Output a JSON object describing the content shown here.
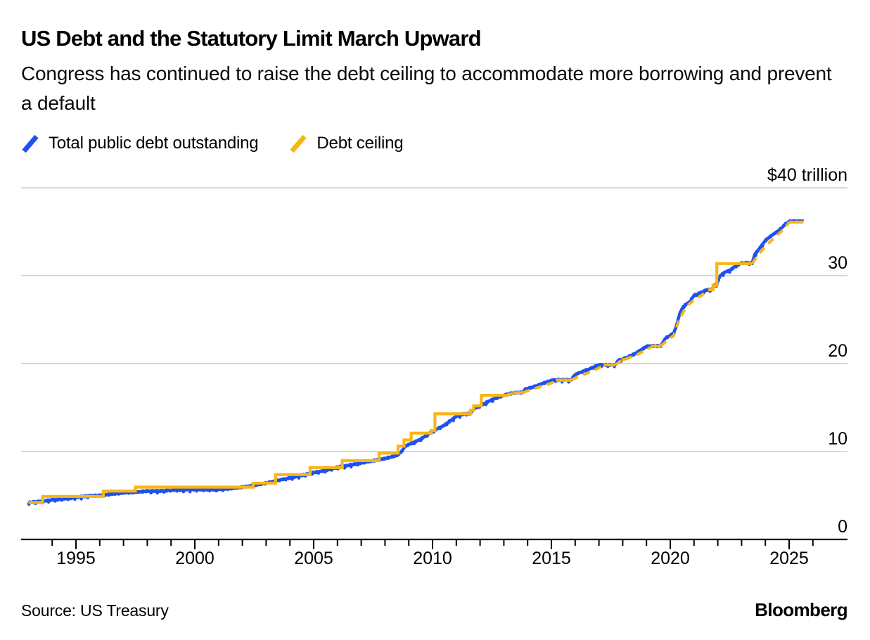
{
  "header": {
    "title": "US Debt and the Statutory Limit March Upward",
    "subtitle": "Congress has continued to raise the debt ceiling to accommodate more borrowing and prevent a default"
  },
  "footer": {
    "source": "Source: US Treasury",
    "brand": "Bloomberg"
  },
  "colors": {
    "debt_blue": "#1e51f0",
    "ceiling_yellow": "#f8b614",
    "gridline": "#cccccc",
    "axis": "#000000",
    "background": "#ffffff"
  },
  "chart_data": {
    "type": "line",
    "title": "US Debt and the Statutory Limit March Upward",
    "xlabel": "",
    "ylabel": "trillions of US dollars",
    "xlim": [
      1992.7,
      2027.4
    ],
    "ylim": [
      0,
      40
    ],
    "grid": true,
    "legend_position": "top-left",
    "yticks": [
      {
        "v": 0,
        "label": "0"
      },
      {
        "v": 10,
        "label": "10"
      },
      {
        "v": 20,
        "label": "20"
      },
      {
        "v": 30,
        "label": "30"
      },
      {
        "v": 40,
        "label": "$40 trillion"
      }
    ],
    "xticks_major": [
      1995,
      2000,
      2005,
      2010,
      2015,
      2020,
      2025
    ],
    "xticks_minor_range": [
      1994,
      2026
    ],
    "legend": [
      {
        "label": "Total public debt outstanding",
        "color": "#1e51f0"
      },
      {
        "label": "Debt ceiling",
        "color": "#f8b614"
      }
    ],
    "series": [
      {
        "name": "Total public debt outstanding",
        "style": "solid-noisy",
        "color": "#1e51f0",
        "visual_noise_trillions": 0.09,
        "points": [
          [
            1993.0,
            4.2
          ],
          [
            1993.3,
            4.27
          ],
          [
            1993.6,
            4.35
          ],
          [
            1994.0,
            4.5
          ],
          [
            1994.5,
            4.6
          ],
          [
            1995.0,
            4.8
          ],
          [
            1995.5,
            4.95
          ],
          [
            1996.0,
            5.0
          ],
          [
            1996.5,
            5.15
          ],
          [
            1997.0,
            5.3
          ],
          [
            1997.5,
            5.37
          ],
          [
            1998.0,
            5.5
          ],
          [
            1998.5,
            5.5
          ],
          [
            1999.0,
            5.6
          ],
          [
            1999.5,
            5.65
          ],
          [
            2000.0,
            5.7
          ],
          [
            2000.5,
            5.65
          ],
          [
            2001.0,
            5.7
          ],
          [
            2001.5,
            5.78
          ],
          [
            2002.0,
            5.95
          ],
          [
            2002.5,
            6.15
          ],
          [
            2003.0,
            6.4
          ],
          [
            2003.5,
            6.73
          ],
          [
            2004.0,
            7.0
          ],
          [
            2004.5,
            7.3
          ],
          [
            2005.0,
            7.6
          ],
          [
            2005.5,
            7.85
          ],
          [
            2006.0,
            8.2
          ],
          [
            2006.5,
            8.45
          ],
          [
            2007.0,
            8.7
          ],
          [
            2007.5,
            8.95
          ],
          [
            2008.0,
            9.2
          ],
          [
            2008.5,
            9.55
          ],
          [
            2008.7,
            10.0
          ],
          [
            2008.85,
            10.6
          ],
          [
            2009.0,
            10.8
          ],
          [
            2009.5,
            11.4
          ],
          [
            2010.0,
            12.3
          ],
          [
            2010.5,
            13.0
          ],
          [
            2011.0,
            14.0
          ],
          [
            2011.35,
            14.3
          ],
          [
            2011.6,
            14.3
          ],
          [
            2011.7,
            14.8
          ],
          [
            2012.0,
            15.2
          ],
          [
            2012.5,
            15.9
          ],
          [
            2013.0,
            16.4
          ],
          [
            2013.45,
            16.7
          ],
          [
            2013.8,
            16.7
          ],
          [
            2013.9,
            17.1
          ],
          [
            2014.2,
            17.3
          ],
          [
            2014.6,
            17.7
          ],
          [
            2015.0,
            18.1
          ],
          [
            2015.2,
            18.15
          ],
          [
            2015.85,
            18.15
          ],
          [
            2015.95,
            18.65
          ],
          [
            2016.2,
            19.0
          ],
          [
            2016.6,
            19.4
          ],
          [
            2017.0,
            19.85
          ],
          [
            2017.7,
            19.85
          ],
          [
            2017.8,
            20.35
          ],
          [
            2018.0,
            20.5
          ],
          [
            2018.5,
            21.1
          ],
          [
            2019.0,
            21.95
          ],
          [
            2019.15,
            22.0
          ],
          [
            2019.6,
            22.0
          ],
          [
            2019.8,
            22.9
          ],
          [
            2020.0,
            23.2
          ],
          [
            2020.15,
            23.5
          ],
          [
            2020.25,
            24.2
          ],
          [
            2020.4,
            25.7
          ],
          [
            2020.55,
            26.5
          ],
          [
            2020.8,
            27.0
          ],
          [
            2021.0,
            27.75
          ],
          [
            2021.3,
            28.1
          ],
          [
            2021.55,
            28.4
          ],
          [
            2021.75,
            28.4
          ],
          [
            2021.85,
            28.9
          ],
          [
            2021.95,
            29.0
          ],
          [
            2022.1,
            30.0
          ],
          [
            2022.3,
            30.4
          ],
          [
            2022.5,
            30.6
          ],
          [
            2022.75,
            31.1
          ],
          [
            2023.0,
            31.45
          ],
          [
            2023.45,
            31.45
          ],
          [
            2023.55,
            32.4
          ],
          [
            2023.75,
            33.1
          ],
          [
            2024.0,
            34.0
          ],
          [
            2024.3,
            34.65
          ],
          [
            2024.6,
            35.2
          ],
          [
            2024.85,
            35.9
          ],
          [
            2025.0,
            36.15
          ],
          [
            2025.1,
            36.2
          ],
          [
            2025.6,
            36.2
          ]
        ]
      },
      {
        "name": "Debt ceiling",
        "style": "steps-with-dashed-suspensions",
        "color": "#f8b614",
        "solid_steps": [
          {
            "from": 1993.0,
            "to": 1993.6,
            "level": 4.2
          },
          {
            "from": 1993.6,
            "to": 1996.15,
            "level": 4.9
          },
          {
            "from": 1996.15,
            "to": 1997.5,
            "level": 5.5
          },
          {
            "from": 1997.5,
            "to": 2002.45,
            "level": 5.95
          },
          {
            "from": 2002.45,
            "to": 2003.4,
            "level": 6.4
          },
          {
            "from": 2003.4,
            "to": 2004.85,
            "level": 7.38
          },
          {
            "from": 2004.85,
            "to": 2006.2,
            "level": 8.18
          },
          {
            "from": 2006.2,
            "to": 2007.75,
            "level": 8.97
          },
          {
            "from": 2007.75,
            "to": 2008.55,
            "level": 9.82
          },
          {
            "from": 2008.55,
            "to": 2008.8,
            "level": 10.61
          },
          {
            "from": 2008.8,
            "to": 2009.1,
            "level": 11.32
          },
          {
            "from": 2009.1,
            "to": 2009.95,
            "level": 12.1
          },
          {
            "from": 2009.95,
            "to": 2010.1,
            "level": 12.39
          },
          {
            "from": 2010.1,
            "to": 2011.6,
            "level": 14.29
          },
          {
            "from": 2011.6,
            "to": 2011.73,
            "level": 14.69
          },
          {
            "from": 2011.73,
            "to": 2012.05,
            "level": 15.19
          },
          {
            "from": 2012.05,
            "to": 2013.1,
            "level": 16.39
          },
          {
            "from": 2013.4,
            "to": 2013.8,
            "level": 16.7
          },
          {
            "from": 2015.2,
            "to": 2015.85,
            "level": 18.11
          },
          {
            "from": 2017.2,
            "to": 2017.7,
            "level": 19.85
          },
          {
            "from": 2017.95,
            "to": 2018.1,
            "level": 20.46
          },
          {
            "from": 2019.2,
            "to": 2019.6,
            "level": 21.99
          },
          {
            "from": 2021.6,
            "to": 2021.8,
            "level": 28.4
          },
          {
            "from": 2021.8,
            "to": 2021.96,
            "level": 28.9
          },
          {
            "from": 2021.96,
            "to": 2023.45,
            "level": 31.38
          },
          {
            "from": 2025.0,
            "to": 2025.6,
            "level": 36.1
          }
        ],
        "dashed_suspension_segments": [
          [
            [
              2013.1,
              16.4
            ],
            [
              2013.4,
              16.65
            ]
          ],
          [
            [
              2013.8,
              16.7
            ],
            [
              2014.2,
              17.1
            ],
            [
              2014.7,
              17.5
            ],
            [
              2015.2,
              18.0
            ]
          ],
          [
            [
              2015.85,
              18.15
            ],
            [
              2016.2,
              18.6
            ],
            [
              2016.7,
              19.1
            ],
            [
              2017.2,
              19.8
            ]
          ],
          [
            [
              2017.7,
              19.85
            ],
            [
              2017.95,
              20.4
            ]
          ],
          [
            [
              2018.1,
              20.5
            ],
            [
              2018.6,
              21.0
            ],
            [
              2019.2,
              21.9
            ]
          ],
          [
            [
              2019.6,
              22.0
            ],
            [
              2019.9,
              22.7
            ],
            [
              2020.15,
              23.2
            ],
            [
              2020.35,
              24.8
            ],
            [
              2020.55,
              25.9
            ],
            [
              2020.8,
              26.8
            ],
            [
              2021.1,
              27.4
            ],
            [
              2021.5,
              28.1
            ],
            [
              2021.6,
              28.4
            ]
          ],
          [
            [
              2023.45,
              31.4
            ],
            [
              2023.8,
              32.7
            ],
            [
              2024.1,
              33.6
            ],
            [
              2024.5,
              34.6
            ],
            [
              2024.85,
              35.5
            ],
            [
              2025.0,
              36.1
            ]
          ]
        ]
      }
    ]
  }
}
